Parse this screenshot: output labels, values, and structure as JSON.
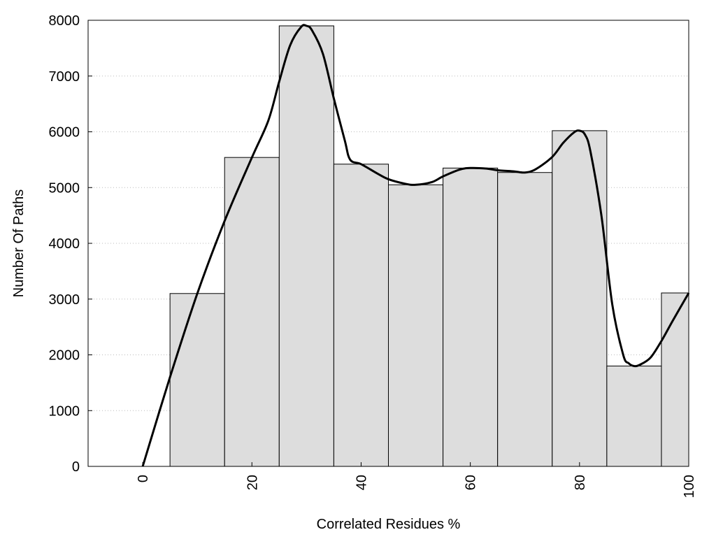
{
  "chart_data": {
    "type": "bar",
    "title": "",
    "xlabel": "Correlated Residues %",
    "ylabel": "Number Of Paths",
    "xlim": [
      -10,
      100
    ],
    "ylim": [
      0,
      8000
    ],
    "x_ticks": [
      0,
      20,
      40,
      60,
      80,
      100
    ],
    "y_ticks": [
      0,
      1000,
      2000,
      3000,
      4000,
      5000,
      6000,
      7000,
      8000
    ],
    "bin_width": 10,
    "bins": [
      {
        "x": 0,
        "value": 0
      },
      {
        "x": 10,
        "value": 3100
      },
      {
        "x": 20,
        "value": 5540
      },
      {
        "x": 30,
        "value": 7900
      },
      {
        "x": 40,
        "value": 5420
      },
      {
        "x": 50,
        "value": 5050
      },
      {
        "x": 60,
        "value": 5350
      },
      {
        "x": 70,
        "value": 5270
      },
      {
        "x": 80,
        "value": 6020
      },
      {
        "x": 90,
        "value": 1800
      },
      {
        "x": 100,
        "value": 3110
      }
    ],
    "curve": {
      "type": "line",
      "x": [
        0,
        5,
        10,
        15,
        20,
        23,
        25,
        27,
        29,
        30,
        31,
        33,
        35,
        37,
        38,
        40,
        43,
        45,
        48,
        50,
        53,
        55,
        58,
        60,
        63,
        65,
        68,
        70,
        72,
        75,
        77,
        79,
        80,
        81,
        82,
        84,
        86,
        88,
        89,
        90,
        91,
        93,
        95,
        97,
        100
      ],
      "y": [
        0,
        1600,
        3100,
        4400,
        5540,
        6200,
        6900,
        7550,
        7880,
        7900,
        7820,
        7400,
        6600,
        5850,
        5500,
        5420,
        5250,
        5150,
        5070,
        5050,
        5100,
        5200,
        5320,
        5350,
        5340,
        5310,
        5290,
        5270,
        5330,
        5550,
        5800,
        5990,
        6020,
        5950,
        5650,
        4500,
        2900,
        2000,
        1850,
        1800,
        1820,
        1950,
        2250,
        2600,
        3110
      ],
      "grid": true
    },
    "grid": true,
    "colors": {
      "bar_fill": "#dddddd",
      "bar_stroke": "#000000",
      "curve": "#000000",
      "grid": "#bbbbbb"
    }
  }
}
